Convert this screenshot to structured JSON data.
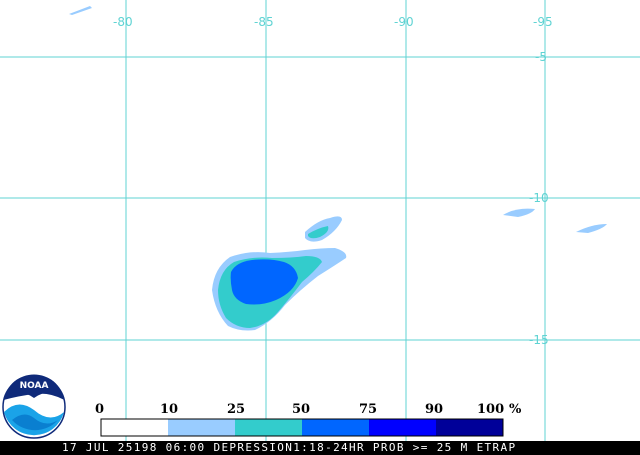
{
  "map": {
    "longitude_labels": [
      "-80",
      "-85",
      "-90",
      "-95"
    ],
    "latitude_labels": [
      "-5",
      "-10",
      "-15"
    ],
    "grid_color": "#5fd3d3",
    "background": "#ffffff"
  },
  "legend": {
    "ticks": [
      "0",
      "10",
      "25",
      "50",
      "75",
      "90",
      "100"
    ],
    "unit": "%",
    "bins": [
      {
        "from": 0,
        "to": 10,
        "color": "#ffffff"
      },
      {
        "from": 10,
        "to": 25,
        "color": "#99ccff"
      },
      {
        "from": 25,
        "to": 50,
        "color": "#33cccc"
      },
      {
        "from": 50,
        "to": 75,
        "color": "#0066ff"
      },
      {
        "from": 75,
        "to": 90,
        "color": "#0000ff"
      },
      {
        "from": 90,
        "to": 100,
        "color": "#000099"
      }
    ]
  },
  "logo": {
    "text": "NOAA",
    "icon": "noaa-logo-icon"
  },
  "footer": {
    "caption": "17 JUL 25198 06:00 DEPRESSION1:18-24HR PROB >= 25 M ETRAP"
  }
}
